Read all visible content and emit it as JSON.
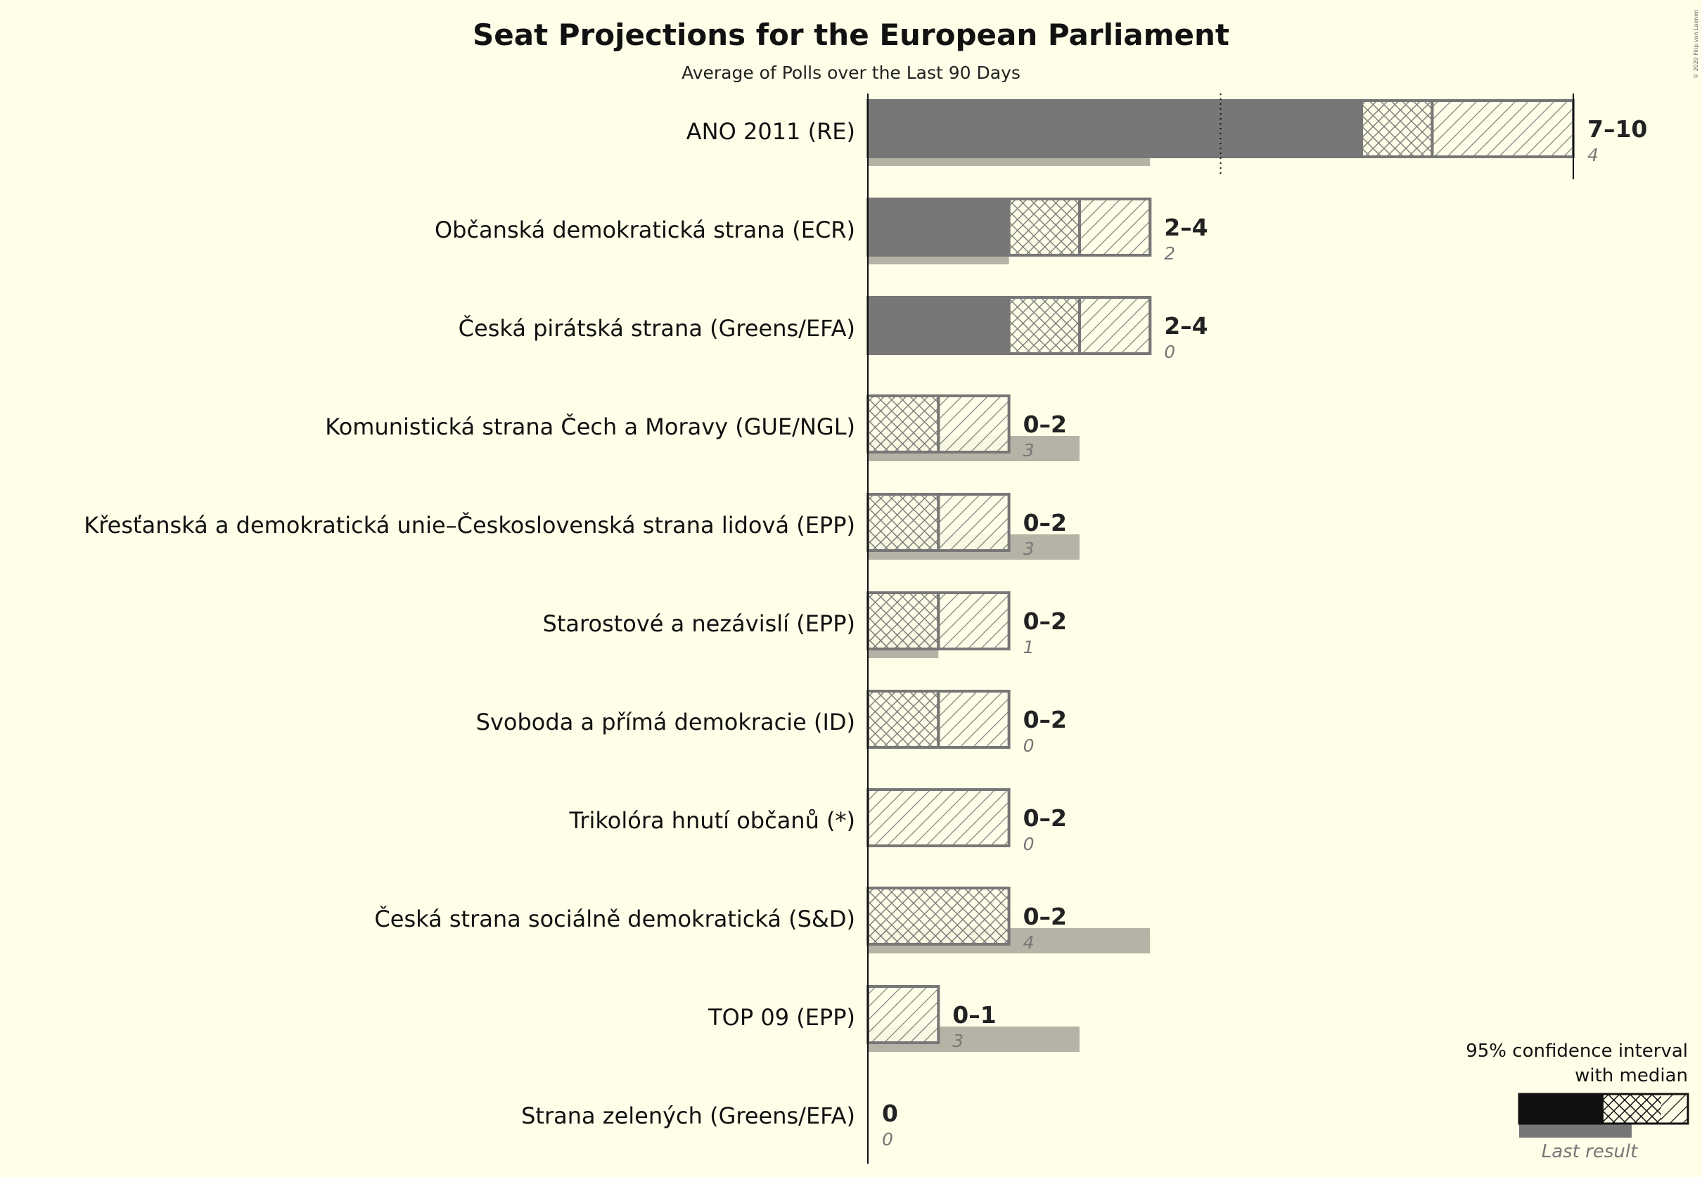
{
  "chart_data": {
    "type": "bar",
    "title": "Seat Projections for the European Parliament",
    "subtitle": "Average of Polls over the Last 90 Days",
    "copyright": "© 2020 Filip van Laenen",
    "parties": [
      {
        "name": "ANO 2011 (RE)",
        "ci_low": 7,
        "median": 8,
        "ci_high": 10,
        "range_label": "7–10",
        "last_result": 4
      },
      {
        "name": "Občanská demokratická strana (ECR)",
        "ci_low": 2,
        "median": 3,
        "ci_high": 4,
        "range_label": "2–4",
        "last_result": 2
      },
      {
        "name": "Česká pirátská strana (Greens/EFA)",
        "ci_low": 2,
        "median": 3,
        "ci_high": 4,
        "range_label": "2–4",
        "last_result": 0
      },
      {
        "name": "Komunistická strana Čech a Moravy (GUE/NGL)",
        "ci_low": 0,
        "median": 1,
        "ci_high": 2,
        "range_label": "0–2",
        "last_result": 3
      },
      {
        "name": "Křesťanská a demokratická unie–Československá strana lidová (EPP)",
        "ci_low": 0,
        "median": 1,
        "ci_high": 2,
        "range_label": "0–2",
        "last_result": 3
      },
      {
        "name": "Starostové a nezávislí (EPP)",
        "ci_low": 0,
        "median": 1,
        "ci_high": 2,
        "range_label": "0–2",
        "last_result": 1
      },
      {
        "name": "Svoboda a přímá demokracie (ID)",
        "ci_low": 0,
        "median": 1,
        "ci_high": 2,
        "range_label": "0–2",
        "last_result": 0
      },
      {
        "name": "Trikolóra hnutí občanů (*)",
        "ci_low": 0,
        "median": 0,
        "ci_high": 2,
        "range_label": "0–2",
        "last_result": 0
      },
      {
        "name": "Česká strana sociálně demokratická (S&D)",
        "ci_low": 0,
        "median": 2,
        "ci_high": 2,
        "range_label": "0–2",
        "last_result": 4
      },
      {
        "name": "TOP 09 (EPP)",
        "ci_low": 0,
        "median": 0,
        "ci_high": 1,
        "range_label": "0–1",
        "last_result": 3
      },
      {
        "name": "Strana zelených (Greens/EFA)",
        "ci_low": 0,
        "median": 0,
        "ci_high": 0,
        "range_label": "0",
        "last_result": 0
      }
    ],
    "majority_marker": 5,
    "legend": {
      "line1": "95% confidence interval",
      "line2": "with median",
      "last_result": "Last result"
    },
    "colors": {
      "background": "#FFFEE8",
      "bar": "#777777",
      "last_result": "#B5B3A5",
      "legend_solid": "#111111"
    }
  }
}
